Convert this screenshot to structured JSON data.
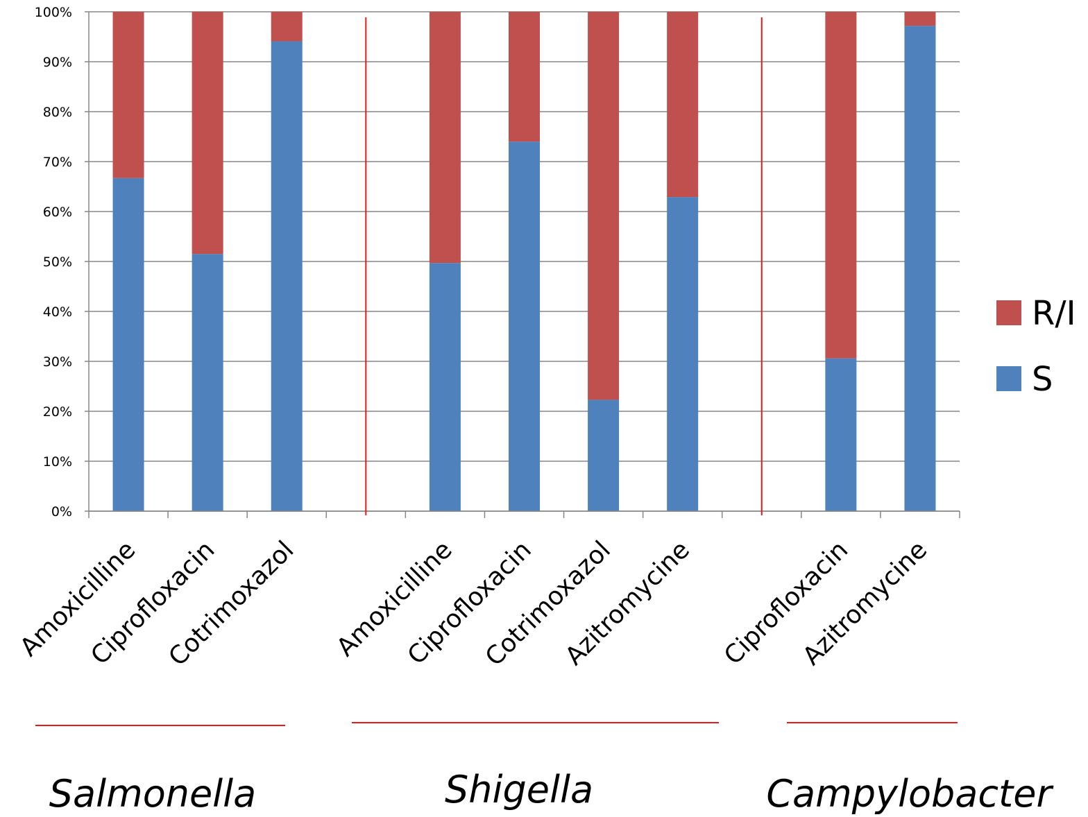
{
  "chart_data": {
    "type": "bar",
    "stacked": true,
    "categories": [
      "Amoxicilline",
      "Ciprofloxacin",
      "Cotrimoxazol",
      "",
      "Amoxicilline",
      "Ciprofloxacin",
      "Cotrimoxazol",
      "Azitromycine",
      "",
      "Ciprofloxacin",
      "Azitromycine"
    ],
    "series": [
      {
        "name": "S",
        "color": "#4f81bd",
        "values": [
          66.7,
          51.5,
          94.1,
          null,
          49.7,
          74.0,
          22.3,
          62.9,
          null,
          30.6,
          97.2
        ]
      },
      {
        "name": "R/I",
        "color": "#c0504d",
        "values": [
          33.3,
          48.5,
          5.9,
          null,
          50.3,
          26.0,
          77.7,
          37.1,
          null,
          69.4,
          2.8
        ]
      }
    ],
    "yticks": [
      "0%",
      "10%",
      "20%",
      "30%",
      "40%",
      "50%",
      "60%",
      "70%",
      "80%",
      "90%",
      "100%"
    ],
    "ylim": [
      0,
      100
    ],
    "grid": true,
    "legend": {
      "position": "right",
      "entries": [
        "R/I",
        "S"
      ]
    },
    "groups": [
      "Salmonella",
      "Shigella",
      "Campylobacter"
    ],
    "separator_color": "#e31a1c"
  }
}
